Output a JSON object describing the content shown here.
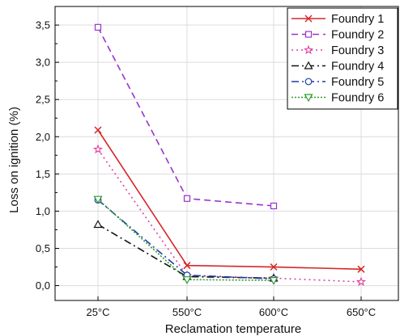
{
  "chart_data": {
    "type": "line",
    "categories": [
      "25°C",
      "550°C",
      "600°C",
      "650°C"
    ],
    "xlabel": "Reclamation temperature",
    "ylabel": "Loss on ignition (%)",
    "ylim": [
      -0.2,
      3.75
    ],
    "yticks": [
      {
        "value": 0,
        "label": "0,0"
      },
      {
        "value": 0.5,
        "label": "0,5"
      },
      {
        "value": 1.0,
        "label": "1,0"
      },
      {
        "value": 1.5,
        "label": "1,5"
      },
      {
        "value": 2.0,
        "label": "2,0"
      },
      {
        "value": 2.5,
        "label": "2,5"
      },
      {
        "value": 3.0,
        "label": "3,0"
      },
      {
        "value": 3.5,
        "label": "3,5"
      }
    ],
    "grid": true,
    "legend_position": "top-right",
    "series": [
      {
        "name": "Foundry 1",
        "color": "#d62728",
        "dash": "solid",
        "marker": "x",
        "values": [
          2.09,
          0.27,
          0.25,
          0.22
        ]
      },
      {
        "name": "Foundry 2",
        "color": "#9933cc",
        "dash": "dash",
        "marker": "square",
        "values": [
          3.47,
          1.17,
          1.07,
          null
        ]
      },
      {
        "name": "Foundry 3",
        "color": "#e0409f",
        "dash": "dot",
        "marker": "star",
        "values": [
          1.83,
          0.13,
          0.1,
          0.05
        ]
      },
      {
        "name": "Foundry 4",
        "color": "#111111",
        "dash": "dashdot",
        "marker": "triangle-up",
        "values": [
          0.82,
          0.12,
          0.1,
          null
        ]
      },
      {
        "name": "Foundry 5",
        "color": "#1f3fa6",
        "dash": "dashdot",
        "marker": "circle",
        "values": [
          1.15,
          0.14,
          0.09,
          null
        ]
      },
      {
        "name": "Foundry 6",
        "color": "#2e9a2e",
        "dash": "shortdot",
        "marker": "triangle-down",
        "values": [
          1.16,
          0.08,
          0.07,
          null
        ]
      }
    ]
  }
}
